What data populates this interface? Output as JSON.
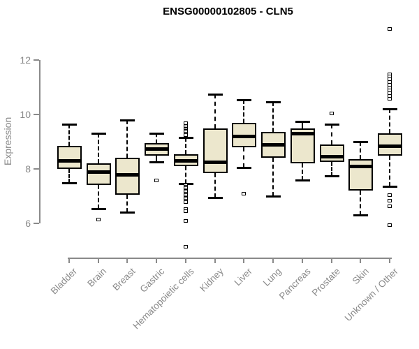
{
  "chart_data": {
    "type": "boxplot",
    "title": "ENSG00000102805 - CLN5",
    "ylabel": "Expression",
    "xlabel": "",
    "yticks": [
      6,
      8,
      10,
      12
    ],
    "ylim": [
      6,
      12
    ],
    "grid": false,
    "legend": false,
    "categories": [
      "Bladder",
      "Brain",
      "Breast",
      "Gastric",
      "Hematopoietic cells",
      "Kidney",
      "Liver",
      "Lung",
      "Pancreas",
      "Prostate",
      "Skin",
      "Unknown / Other"
    ],
    "boxes": [
      {
        "category": "Bladder",
        "whisker_low": 7.5,
        "q1": 8.0,
        "median": 8.3,
        "q3": 8.85,
        "whisker_high": 9.65,
        "outliers": []
      },
      {
        "category": "Brain",
        "whisker_low": 6.55,
        "q1": 7.4,
        "median": 7.9,
        "q3": 8.2,
        "whisker_high": 9.3,
        "outliers": [
          6.15
        ]
      },
      {
        "category": "Breast",
        "whisker_low": 6.4,
        "q1": 7.05,
        "median": 7.8,
        "q3": 8.4,
        "whisker_high": 9.8,
        "outliers": []
      },
      {
        "category": "Gastric",
        "whisker_low": 8.25,
        "q1": 8.5,
        "median": 8.75,
        "q3": 8.95,
        "whisker_high": 9.3,
        "outliers": [
          7.6
        ]
      },
      {
        "category": "Hematopoietic cells",
        "whisker_low": 7.45,
        "q1": 8.1,
        "median": 8.3,
        "q3": 8.55,
        "whisker_high": 9.15,
        "outliers": [
          9.7,
          9.6,
          9.55,
          9.5,
          9.45,
          9.4,
          9.35,
          9.3,
          9.25,
          7.4,
          7.35,
          7.3,
          7.25,
          7.2,
          7.15,
          7.1,
          7.05,
          7.0,
          6.95,
          6.9,
          6.85,
          6.8,
          6.55,
          6.45,
          6.1,
          5.15
        ]
      },
      {
        "category": "Kidney",
        "whisker_low": 6.95,
        "q1": 7.85,
        "median": 8.25,
        "q3": 9.5,
        "whisker_high": 10.75,
        "outliers": []
      },
      {
        "category": "Liver",
        "whisker_low": 8.05,
        "q1": 8.8,
        "median": 9.2,
        "q3": 9.7,
        "whisker_high": 10.55,
        "outliers": [
          7.1
        ]
      },
      {
        "category": "Lung",
        "whisker_low": 7.0,
        "q1": 8.4,
        "median": 8.9,
        "q3": 9.35,
        "whisker_high": 10.45,
        "outliers": []
      },
      {
        "category": "Pancreas",
        "whisker_low": 7.6,
        "q1": 8.2,
        "median": 9.3,
        "q3": 9.5,
        "whisker_high": 9.75,
        "outliers": []
      },
      {
        "category": "Prostate",
        "whisker_low": 7.75,
        "q1": 8.25,
        "median": 8.45,
        "q3": 8.9,
        "whisker_high": 9.65,
        "outliers": [
          10.05
        ]
      },
      {
        "category": "Skin",
        "whisker_low": 6.3,
        "q1": 7.2,
        "median": 8.1,
        "q3": 8.35,
        "whisker_high": 9.0,
        "outliers": []
      },
      {
        "category": "Unknown / Other",
        "whisker_low": 7.35,
        "q1": 8.5,
        "median": 8.85,
        "q3": 9.3,
        "whisker_high": 10.2,
        "outliers": [
          13.15,
          11.5,
          11.4,
          11.3,
          11.2,
          11.1,
          11.0,
          10.9,
          10.8,
          10.7,
          10.6,
          7.05,
          6.85,
          6.65,
          5.95
        ]
      }
    ],
    "colors": {
      "box_fill": "#ECE7CD",
      "box_stroke": "#000000",
      "axis": "#8a8a8a",
      "title": "#000000"
    }
  }
}
